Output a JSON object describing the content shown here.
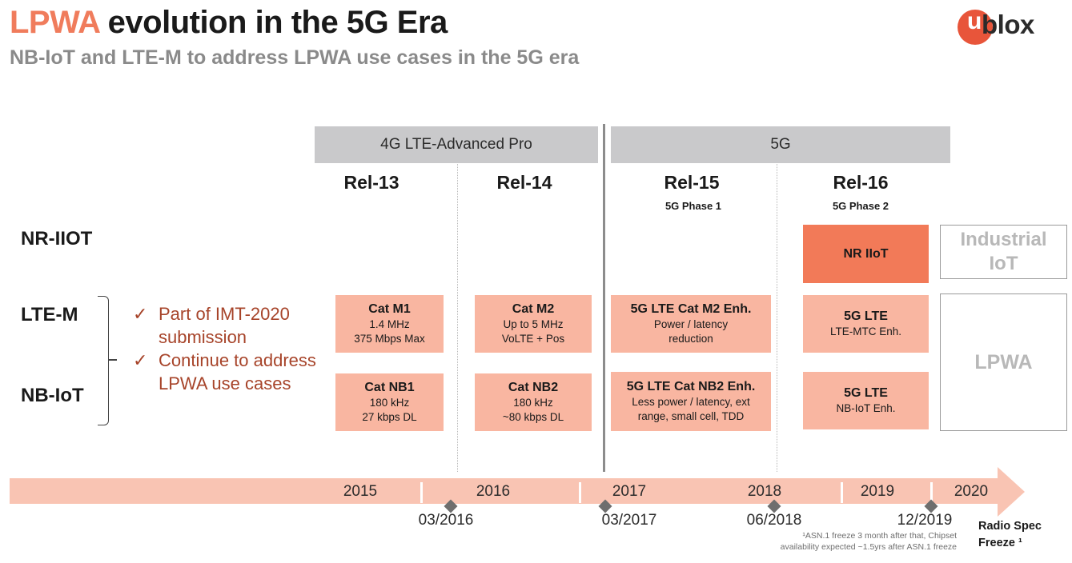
{
  "header": {
    "title_accent": "LPWA",
    "title_rest": " evolution in the 5G Era",
    "subtitle": "NB-IoT and LTE-M to address LPWA use cases in the 5G era",
    "logo_mark": "u",
    "logo_text": "blox",
    "brand_color": "#e8553a",
    "accent_color": "#f07c5c"
  },
  "eras": [
    {
      "label": "4G LTE-Advanced Pro"
    },
    {
      "label": "5G"
    }
  ],
  "releases": [
    {
      "name": "Rel-13",
      "phase": ""
    },
    {
      "name": "Rel-14",
      "phase": ""
    },
    {
      "name": "Rel-15",
      "phase": "5G Phase 1"
    },
    {
      "name": "Rel-16",
      "phase": "5G Phase 2"
    }
  ],
  "rows": {
    "nr_iiot": "NR-IIOT",
    "lte_m": "LTE-M",
    "nb_iot": "NB-IoT"
  },
  "notes": [
    {
      "mark": "✓",
      "text": "Part of IMT-2020 submission"
    },
    {
      "mark": "✓",
      "text": "Continue to address LPWA use cases"
    }
  ],
  "boxes": {
    "nr_iiot": {
      "title": "NR IIoT"
    },
    "lte_m": [
      {
        "title": "Cat M1",
        "lines": [
          "1.4 MHz",
          "375 Mbps Max"
        ]
      },
      {
        "title": "Cat M2",
        "lines": [
          "Up to 5 MHz",
          "VoLTE + Pos"
        ]
      },
      {
        "title": "5G LTE Cat M2 Enh.",
        "lines": [
          "Power / latency",
          "reduction"
        ]
      },
      {
        "title": "5G LTE",
        "lines": [
          "LTE-MTC Enh."
        ]
      }
    ],
    "nb_iot": [
      {
        "title": "Cat NB1",
        "lines": [
          "180 kHz",
          "27 kbps DL"
        ]
      },
      {
        "title": "Cat NB2",
        "lines": [
          "180 kHz",
          "~80 kbps DL"
        ]
      },
      {
        "title": "5G LTE Cat NB2 Enh.",
        "lines": [
          "Less power / latency, ext",
          "range, small cell, TDD"
        ]
      },
      {
        "title": "5G LTE",
        "lines": [
          "NB-IoT Enh."
        ]
      }
    ],
    "industrial_iot": [
      "Industrial",
      "IoT"
    ],
    "lpwa": "LPWA"
  },
  "timeline": {
    "years": [
      "2015",
      "2016",
      "2017",
      "2018",
      "2019",
      "2020"
    ],
    "freeze_dates": [
      "03/2016",
      "03/2017",
      "06/2018",
      "12/2019"
    ],
    "footnote": [
      "¹ASN.1 freeze 3 month after that, Chipset",
      "availability expected ~1.5yrs after ASN.1 freeze"
    ],
    "radio_spec_label": [
      "Radio Spec",
      "Freeze ¹"
    ]
  }
}
